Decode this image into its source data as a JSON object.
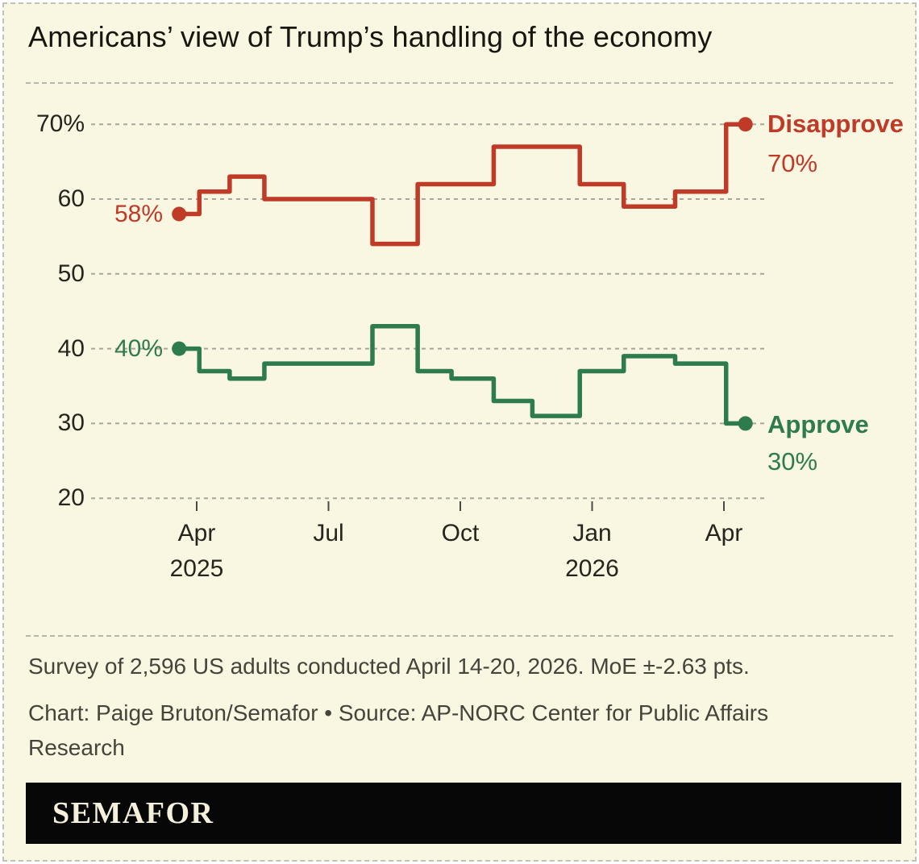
{
  "title": "Americans’ view of Trump’s handling of the economy",
  "chart_data": {
    "type": "line",
    "step": true,
    "title": "Americans’ view of Trump’s handling of the economy",
    "xlabel": "",
    "ylabel": "",
    "ylim": [
      20,
      70
    ],
    "grid": "dashed-horizontal",
    "legend_position": "right-end-labels",
    "yticks": [
      {
        "label": "70%",
        "value": 70
      },
      {
        "label": "60",
        "value": 60
      },
      {
        "label": "50",
        "value": 50
      },
      {
        "label": "40",
        "value": 40
      },
      {
        "label": "30",
        "value": 30
      },
      {
        "label": "20",
        "value": 20
      }
    ],
    "xticks": [
      {
        "label": "Apr",
        "sub": "2025",
        "m": 0
      },
      {
        "label": "Jul",
        "sub": "",
        "m": 3
      },
      {
        "label": "Oct",
        "sub": "",
        "m": 6
      },
      {
        "label": "Jan",
        "sub": "2026",
        "m": 9
      },
      {
        "label": "Apr",
        "sub": "",
        "m": 12
      }
    ],
    "x_unit": "months since April 2025",
    "series": [
      {
        "name": "Disapprove",
        "color": "#bf3a27",
        "start_label": "58%",
        "end_label": "70%",
        "points": [
          [
            -0.4,
            58
          ],
          [
            0.06,
            61
          ],
          [
            0.75,
            63
          ],
          [
            1.54,
            60
          ],
          [
            4.0,
            54
          ],
          [
            5.03,
            62
          ],
          [
            5.8,
            62
          ],
          [
            6.76,
            67
          ],
          [
            7.64,
            67
          ],
          [
            8.72,
            62
          ],
          [
            9.72,
            59
          ],
          [
            10.89,
            61
          ],
          [
            12.05,
            70
          ],
          [
            12.49,
            70
          ]
        ]
      },
      {
        "name": "Approve",
        "color": "#2e7b4e",
        "start_label": "40%",
        "end_label": "30%",
        "points": [
          [
            -0.4,
            40
          ],
          [
            0.06,
            37
          ],
          [
            0.75,
            36
          ],
          [
            1.54,
            38
          ],
          [
            4.0,
            43
          ],
          [
            5.03,
            37
          ],
          [
            5.8,
            36
          ],
          [
            6.76,
            33
          ],
          [
            7.64,
            31
          ],
          [
            8.72,
            37
          ],
          [
            9.72,
            39
          ],
          [
            10.89,
            38
          ],
          [
            12.05,
            30
          ],
          [
            12.49,
            30
          ]
        ]
      }
    ]
  },
  "footer": {
    "survey_note": "Survey of 2,596 US adults conducted April 14-20, 2026. MoE ±-2.63 pts.",
    "credit": "Chart: Paige Bruton/Semafor • Source: AP-NORC Center for Public Affairs Research"
  },
  "logo": {
    "text": "SEMAFOR"
  },
  "colors": {
    "background": "#f9f6e2",
    "grid": "#a8a69b",
    "tick": "#4a4a42",
    "disapprove": "#bf3a27",
    "approve": "#2e7b4e",
    "logo_bar": "#070707"
  }
}
